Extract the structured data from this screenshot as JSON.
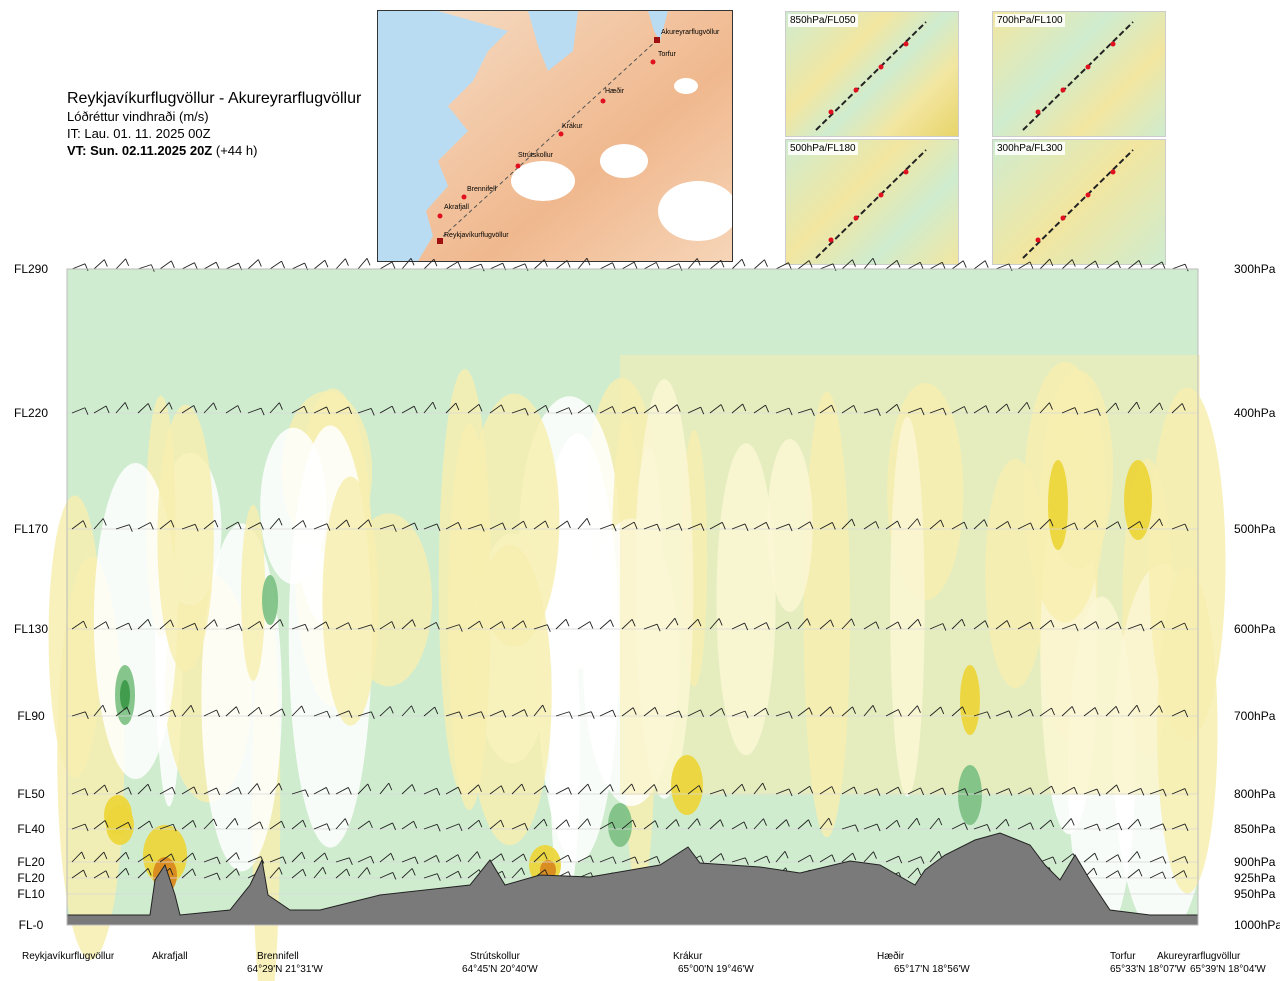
{
  "header": {
    "route": "Reykjavíkurflugvöllur - Akureyrarflugvöllur",
    "subtitle": "Lóðréttur vindhraði (m/s)",
    "issue_time": "IT: Lau. 01. 11. 2025 00Z",
    "valid_time": "VT: Sun. 02.11.2025 20Z",
    "lead": "(+44 h)"
  },
  "map": {
    "points": [
      "Reykjavíkurflugvöllur",
      "Akrafjall",
      "Brennifell",
      "Strútskollur",
      "Krákur",
      "Hæðir",
      "Torfur",
      "Akureyrarflugvöllur"
    ]
  },
  "mini_maps": [
    {
      "label": "850hPa/FL050"
    },
    {
      "label": "700hPa/FL100"
    },
    {
      "label": "500hPa/FL180"
    },
    {
      "label": "300hPa/FL300"
    }
  ],
  "chart_data": {
    "type": "heatmap",
    "title": "Lóðréttur vindhraði (m/s)",
    "left_axis": [
      "FL290",
      "FL220",
      "FL170",
      "FL130",
      "FL90",
      "FL50",
      "FL40",
      "FL20",
      "FL20",
      "FL10",
      "FL-0"
    ],
    "right_axis": [
      "300hPa",
      "400hPa",
      "500hPa",
      "600hPa",
      "700hPa",
      "800hPa",
      "850hPa",
      "900hPa",
      "925hPa",
      "950hPa",
      "1000hPa"
    ],
    "pressure_levels_hpa": [
      300,
      400,
      500,
      600,
      700,
      800,
      850,
      900,
      925,
      950,
      1000
    ],
    "locations": [
      {
        "name": "Reykjavíkurflugvöllur",
        "coord": ""
      },
      {
        "name": "Akrafjall",
        "coord": ""
      },
      {
        "name": "Brennifell",
        "coord": "64°29'N 21°31'W"
      },
      {
        "name": "Strútskollur",
        "coord": "64°45'N 20°40'W"
      },
      {
        "name": "Krákur",
        "coord": "65°00'N 19°46'W"
      },
      {
        "name": "Hæðir",
        "coord": "65°17'N 18°56'W"
      },
      {
        "name": "Torfur",
        "coord": "65°33'N 18°07'W"
      },
      {
        "name": "Akureyrarflugvöllur",
        "coord": "65°39'N 18°04'W"
      }
    ],
    "colors": {
      "strong_down": "#3d9b4a",
      "moderate_down": "#7fc286",
      "weak_down": "#cfeccf",
      "near_zero": "#ffffff",
      "weak_up": "#f7efb0",
      "moderate_up": "#ecd63c",
      "strong_up": "#d98a20",
      "very_strong_up": "#8a3a10",
      "terrain": "#7a7a7a"
    }
  }
}
